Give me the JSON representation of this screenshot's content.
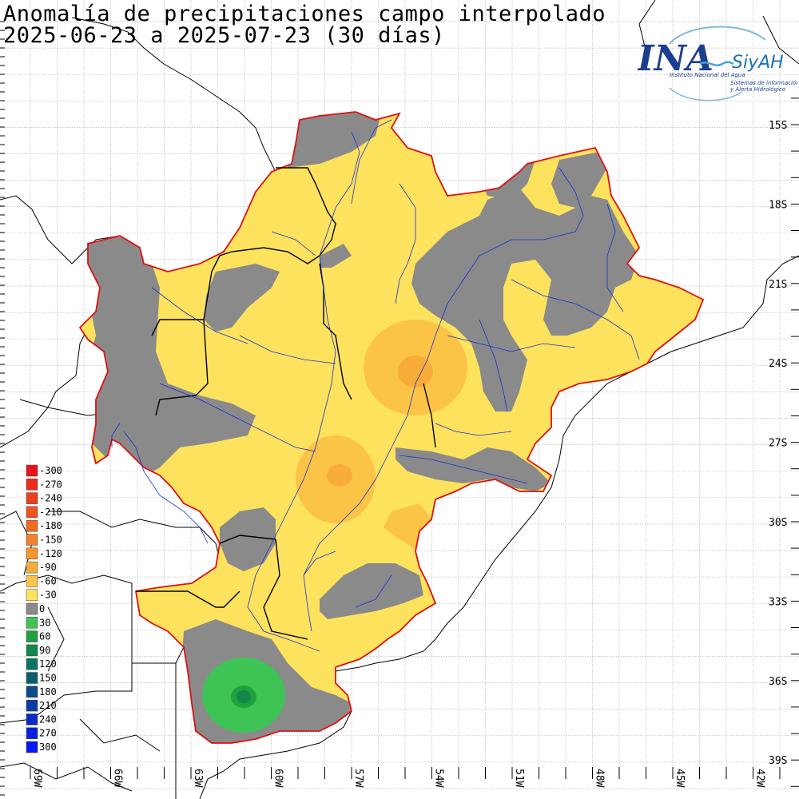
{
  "title": {
    "line1": "Anomalía de precipitaciones campo interpolado",
    "line2": "2025-06-23 a 2025-07-23 (30 días)"
  },
  "logo": {
    "brand": "INA",
    "system": "SiyAH",
    "institute": "Instituto Nacional del Agua",
    "subtitle1": "Sistemas de información",
    "subtitle2": "y Alerta Hidrológico"
  },
  "map": {
    "lat_labels": [
      "15S",
      "18S",
      "21S",
      "24S",
      "27S",
      "30S",
      "33S",
      "36S",
      "39S"
    ],
    "lon_labels": [
      "69W",
      "66W",
      "63W",
      "60W",
      "57W",
      "54W",
      "51W",
      "48W",
      "45W",
      "42W"
    ]
  },
  "legend": {
    "entries": [
      {
        "value": "-300",
        "color": "#e8141a"
      },
      {
        "value": "-270",
        "color": "#ea2a1a"
      },
      {
        "value": "-240",
        "color": "#ec3f1b"
      },
      {
        "value": "-210",
        "color": "#ee561d"
      },
      {
        "value": "-180",
        "color": "#f06a1f"
      },
      {
        "value": "-150",
        "color": "#f28127"
      },
      {
        "value": "-120",
        "color": "#f5962f"
      },
      {
        "value": "-90",
        "color": "#f8ac3a"
      },
      {
        "value": "-60",
        "color": "#fbc447"
      },
      {
        "value": "-30",
        "color": "#fde25e"
      },
      {
        "value": "0",
        "color": "#8a8a8a"
      },
      {
        "value": "30",
        "color": "#3ec454"
      },
      {
        "value": "60",
        "color": "#1ea23d"
      },
      {
        "value": "90",
        "color": "#11874b"
      },
      {
        "value": "120",
        "color": "#0b7560"
      },
      {
        "value": "150",
        "color": "#0a5f72"
      },
      {
        "value": "180",
        "color": "#0c4a8a"
      },
      {
        "value": "210",
        "color": "#0b3aa8"
      },
      {
        "value": "240",
        "color": "#0a2cc4"
      },
      {
        "value": "270",
        "color": "#0720dc"
      },
      {
        "value": "300",
        "color": "#0418f0"
      }
    ]
  },
  "colors": {
    "basin_outline": "#e01010",
    "rivers": "#1a2fd0",
    "borders": "#000000",
    "gray_zero": "#8a8a8a",
    "yellow_neg30": "#fde25e",
    "orange_neg60": "#fbc447",
    "orange_neg90": "#f8ac3a",
    "green_30": "#3ec454",
    "green_60": "#1ea23d"
  }
}
